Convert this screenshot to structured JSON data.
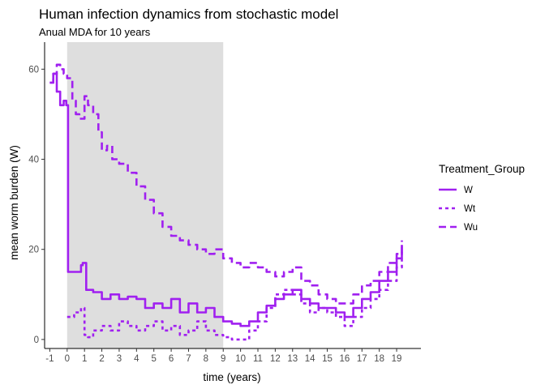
{
  "chart_data": {
    "type": "line",
    "title": "Human infection dynamics from stochastic model",
    "subtitle": "Anual MDA for 10 years",
    "xlabel": "time (years)",
    "ylabel": "mean worm burden (W)",
    "xlim": [
      -1.3,
      20.4
    ],
    "ylim": [
      -2,
      66
    ],
    "x_ticks": [
      -1,
      0,
      1,
      2,
      3,
      4,
      5,
      6,
      7,
      8,
      9,
      10,
      11,
      12,
      13,
      14,
      15,
      16,
      17,
      18,
      19
    ],
    "y_ticks": [
      0,
      20,
      40,
      60
    ],
    "grid": false,
    "shaded_region": {
      "from": 0,
      "to": 9,
      "color": "#dedede"
    },
    "line_color": "#a020f0",
    "legend": {
      "title": "Treatment_Group",
      "placement": "right",
      "entries": [
        {
          "label": "W",
          "dash": "solid"
        },
        {
          "label": "Wt",
          "dash": "short-dash"
        },
        {
          "label": "Wu",
          "dash": "long-dash"
        }
      ]
    },
    "series": [
      {
        "name": "W",
        "dash": "solid",
        "x": [
          -1.0,
          -0.8,
          -0.6,
          -0.4,
          -0.2,
          -0.05,
          0.0,
          0.05,
          0.5,
          0.8,
          0.9,
          1.1,
          1.5,
          2.0,
          2.5,
          3.0,
          3.5,
          4.0,
          4.5,
          5.0,
          5.5,
          6.0,
          6.5,
          7.0,
          7.5,
          8.0,
          8.5,
          9.0,
          9.5,
          10.0,
          10.5,
          11.0,
          11.5,
          12.0,
          12.5,
          13.0,
          13.5,
          14.0,
          14.5,
          15.0,
          15.5,
          16.0,
          16.5,
          17.0,
          17.5,
          18.0,
          18.5,
          19.0,
          19.3
        ],
        "y": [
          57,
          59,
          55,
          52,
          53,
          52,
          52,
          15,
          15,
          16.5,
          17,
          11,
          10.5,
          9,
          10,
          9,
          9.5,
          9,
          7,
          8,
          7,
          9,
          6,
          8,
          6,
          7,
          5,
          4,
          3.5,
          3,
          4,
          6,
          7.5,
          9,
          10,
          11,
          9,
          8,
          7,
          7,
          6,
          5,
          7,
          9,
          10.5,
          13,
          15,
          18,
          21
        ]
      },
      {
        "name": "Wt",
        "dash": "short-dash",
        "x": [
          0.0,
          0.05,
          0.4,
          0.8,
          1.0,
          1.2,
          1.5,
          2.0,
          2.5,
          3.0,
          3.5,
          4.0,
          4.5,
          5.0,
          5.5,
          6.0,
          6.5,
          7.0,
          7.5,
          8.0,
          8.5,
          9.0,
          9.5,
          10.0,
          10.5,
          11.0,
          11.5,
          12.0,
          12.5,
          13.0,
          13.5,
          14.0,
          14.5,
          15.0,
          15.5,
          16.0,
          16.5,
          17.0,
          17.5,
          18.0,
          18.5,
          19.0,
          19.3
        ],
        "y": [
          5,
          5,
          6,
          7,
          1,
          0.5,
          2,
          3,
          2,
          4,
          3,
          2,
          3,
          4,
          2,
          3,
          1,
          2,
          4,
          2,
          1,
          0.5,
          0,
          0,
          2,
          4,
          7,
          10,
          11,
          10,
          8,
          6,
          7,
          6,
          5,
          3,
          5,
          7,
          9,
          11,
          13,
          16,
          20
        ]
      },
      {
        "name": "Wu",
        "dash": "long-dash",
        "x": [
          -1.0,
          -0.8,
          -0.6,
          -0.4,
          -0.2,
          0.0,
          0.3,
          0.5,
          0.7,
          1.0,
          1.2,
          1.5,
          1.8,
          2.0,
          2.3,
          2.6,
          3.0,
          3.5,
          4.0,
          4.5,
          5.0,
          5.5,
          6.0,
          6.5,
          7.0,
          7.5,
          8.0,
          8.5,
          9.0,
          9.5,
          10.0,
          10.5,
          11.0,
          11.5,
          12.0,
          12.5,
          13.0,
          13.5,
          14.0,
          14.5,
          15.0,
          15.5,
          16.0,
          16.5,
          17.0,
          17.5,
          18.0,
          18.5,
          19.0,
          19.3
        ],
        "y": [
          57,
          59,
          61,
          60,
          59,
          58,
          53,
          50,
          49,
          54,
          52,
          50,
          46,
          42,
          43,
          40,
          39,
          37,
          34,
          31,
          28,
          25,
          23,
          22,
          21,
          20,
          19,
          20,
          18,
          17,
          16,
          17,
          16,
          15,
          14,
          15,
          16,
          13,
          12,
          10,
          9,
          8,
          8,
          10,
          12,
          13,
          15,
          17,
          19,
          22
        ]
      }
    ]
  }
}
